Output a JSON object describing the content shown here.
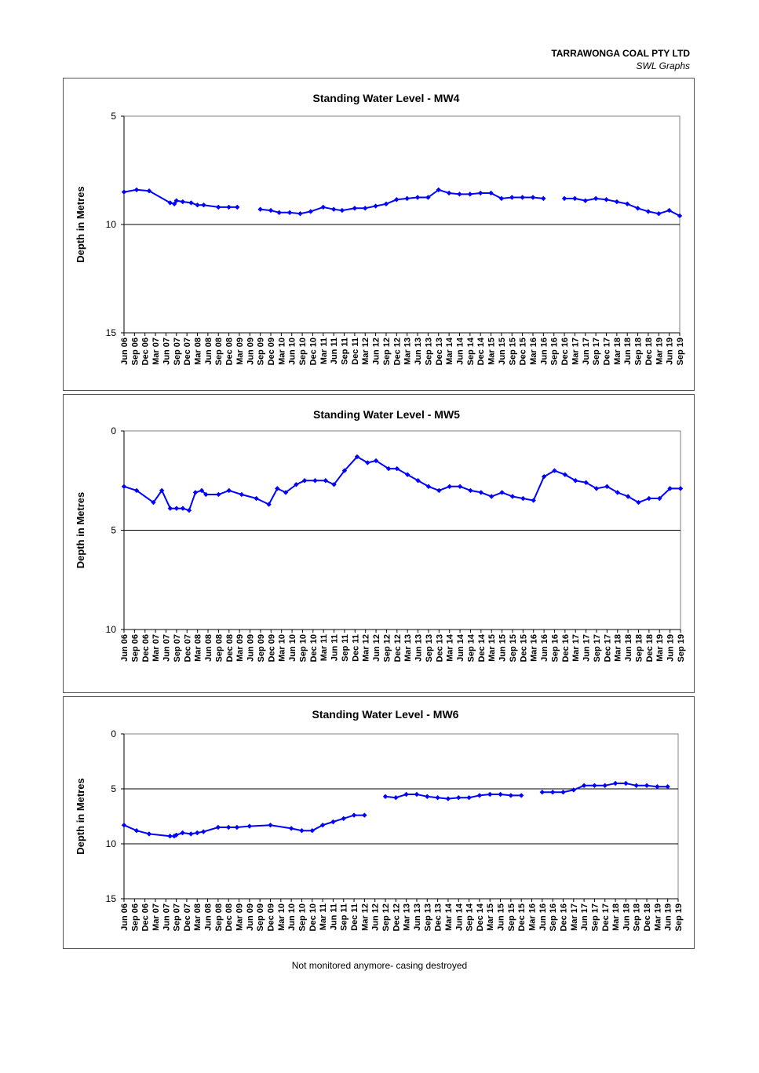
{
  "header": {
    "company": "TARRAWONGA COAL PTY LTD",
    "subtitle": "SWL Graphs"
  },
  "footnote": "Not monitored anymore- casing destroyed",
  "tick_labels": [
    "Jun 06",
    "Sep 06",
    "Dec 06",
    "Mar 07",
    "Jun 07",
    "Sep 07",
    "Dec 07",
    "Mar 08",
    "Jun 08",
    "Sep 08",
    "Dec 08",
    "Mar 09",
    "Jun 09",
    "Sep 09",
    "Dec 09",
    "Mar 10",
    "Jun 10",
    "Sep 10",
    "Dec 10",
    "Mar 11",
    "Jun 11",
    "Sep 11",
    "Dec 11",
    "Mar 12",
    "Jun 12",
    "Sep 12",
    "Dec 12",
    "Mar 13",
    "Jun 13",
    "Sep 13",
    "Dec 13",
    "Mar 14",
    "Jun 14",
    "Sep 14",
    "Dec 14",
    "Mar 15",
    "Jun 15",
    "Sep 15",
    "Dec 15",
    "Mar 16",
    "Jun 16",
    "Sep 16",
    "Dec 16",
    "Mar 17",
    "Jun 17",
    "Sep 17",
    "Dec 17",
    "Mar 18",
    "Jun 18",
    "Sep 18",
    "Dec 18",
    "Mar 19",
    "Jun 19",
    "Sep 19"
  ],
  "colors": {
    "series": "#0000ff",
    "grid": "#000000",
    "axis": "#000000"
  },
  "chart_data": [
    {
      "type": "line",
      "title": "Standing Water Level - MW4",
      "ylabel": "Depth in Metres",
      "ylim": [
        5,
        15
      ],
      "y_inverted": true,
      "yticks": [
        5,
        10,
        15
      ],
      "gridlines": [
        10
      ],
      "x_range": [
        0,
        53
      ],
      "series": [
        {
          "points": [
            [
              0,
              8.5
            ],
            [
              0.6,
              8.4
            ],
            [
              1.2,
              8.45
            ],
            [
              2.2,
              9.0
            ],
            [
              2.4,
              9.05
            ],
            [
              2.5,
              8.9
            ],
            [
              2.8,
              8.95
            ],
            [
              3.2,
              9.0
            ],
            [
              3.5,
              9.1
            ],
            [
              3.8,
              9.1
            ],
            [
              4.5,
              9.2
            ],
            [
              5,
              9.2
            ],
            [
              5.4,
              9.2
            ],
            null,
            [
              6.5,
              9.3
            ],
            [
              7,
              9.35
            ],
            [
              7.4,
              9.45
            ],
            [
              7.9,
              9.45
            ],
            [
              8.4,
              9.5
            ],
            [
              8.9,
              9.4
            ],
            [
              9.5,
              9.2
            ],
            [
              10,
              9.3
            ],
            [
              10.4,
              9.35
            ],
            [
              11,
              9.25
            ],
            [
              11.5,
              9.25
            ],
            [
              12,
              9.15
            ],
            [
              12.5,
              9.05
            ],
            [
              13,
              8.85
            ],
            [
              13.5,
              8.8
            ],
            [
              14,
              8.75
            ],
            [
              14.5,
              8.75
            ],
            [
              15,
              8.4
            ],
            [
              15.5,
              8.55
            ],
            [
              16,
              8.6
            ],
            [
              16.5,
              8.6
            ],
            [
              17,
              8.55
            ],
            [
              17.5,
              8.55
            ],
            [
              18,
              8.8
            ],
            [
              18.5,
              8.75
            ],
            [
              19,
              8.75
            ],
            [
              19.5,
              8.75
            ],
            [
              20,
              8.8
            ],
            null,
            [
              21,
              8.8
            ],
            [
              21.5,
              8.8
            ],
            [
              22,
              8.9
            ],
            [
              22.5,
              8.8
            ],
            [
              23,
              8.85
            ],
            [
              23.5,
              8.95
            ],
            [
              24,
              9.05
            ],
            [
              24.5,
              9.25
            ],
            [
              25,
              9.4
            ],
            [
              25.5,
              9.5
            ],
            [
              26,
              9.35
            ],
            [
              26.5,
              9.6
            ]
          ]
        }
      ]
    },
    {
      "type": "line",
      "title": "Standing Water Level - MW5",
      "ylabel": "Depth in Metres",
      "ylim": [
        0,
        10
      ],
      "y_inverted": true,
      "yticks": [
        0,
        5,
        10
      ],
      "gridlines": [
        5
      ],
      "x_range": [
        0,
        53
      ],
      "series": [
        {
          "points": [
            [
              0,
              2.8
            ],
            [
              0.6,
              3.0
            ],
            [
              1.4,
              3.6
            ],
            [
              1.8,
              3.0
            ],
            [
              2.2,
              3.9
            ],
            [
              2.5,
              3.9
            ],
            [
              2.8,
              3.9
            ],
            [
              3.1,
              4.0
            ],
            [
              3.4,
              3.1
            ],
            [
              3.7,
              3.0
            ],
            [
              3.9,
              3.2
            ],
            [
              4.5,
              3.2
            ],
            [
              5,
              3.0
            ],
            [
              5.6,
              3.2
            ],
            [
              6.3,
              3.4
            ],
            [
              6.9,
              3.7
            ],
            [
              7.3,
              2.9
            ],
            [
              7.7,
              3.1
            ],
            [
              8.2,
              2.7
            ],
            [
              8.6,
              2.5
            ],
            [
              9.1,
              2.5
            ],
            [
              9.6,
              2.5
            ],
            [
              10,
              2.7
            ],
            [
              10.5,
              2.0
            ],
            [
              11.1,
              1.3
            ],
            [
              11.6,
              1.6
            ],
            [
              12,
              1.5
            ],
            [
              12.6,
              1.9
            ],
            [
              13,
              1.9
            ],
            [
              13.5,
              2.2
            ],
            [
              14,
              2.5
            ],
            [
              14.5,
              2.8
            ],
            [
              15,
              3.0
            ],
            [
              15.5,
              2.8
            ],
            [
              16,
              2.8
            ],
            [
              16.5,
              3.0
            ],
            [
              17,
              3.1
            ],
            [
              17.5,
              3.3
            ],
            [
              18,
              3.1
            ],
            [
              18.5,
              3.3
            ],
            [
              19,
              3.4
            ],
            [
              19.5,
              3.5
            ],
            [
              20,
              2.3
            ],
            [
              20.5,
              2.0
            ],
            [
              21,
              2.2
            ],
            [
              21.5,
              2.5
            ],
            [
              22,
              2.6
            ],
            [
              22.5,
              2.9
            ],
            [
              23,
              2.8
            ],
            [
              23.5,
              3.1
            ],
            [
              24,
              3.3
            ],
            [
              24.5,
              3.6
            ],
            [
              25,
              3.4
            ],
            [
              25.5,
              3.4
            ],
            [
              26,
              2.9
            ],
            [
              26.5,
              2.9
            ]
          ]
        }
      ]
    },
    {
      "type": "line",
      "title": "Standing Water Level - MW6",
      "ylabel": "Depth in Metres",
      "ylim": [
        0,
        15
      ],
      "y_inverted": true,
      "yticks": [
        0,
        5,
        10,
        15
      ],
      "gridlines": [
        5,
        10
      ],
      "x_range": [
        0,
        53
      ],
      "series": [
        {
          "points": [
            [
              0,
              8.3
            ],
            [
              0.6,
              8.8
            ],
            [
              1.2,
              9.1
            ],
            [
              2.2,
              9.3
            ],
            [
              2.4,
              9.3
            ],
            [
              2.5,
              9.2
            ],
            [
              2.8,
              9.0
            ],
            [
              3.2,
              9.1
            ],
            [
              3.5,
              9.0
            ],
            [
              3.8,
              8.9
            ],
            [
              4.5,
              8.5
            ],
            [
              5,
              8.5
            ],
            [
              5.4,
              8.5
            ],
            [
              6,
              8.4
            ],
            [
              7,
              8.3
            ],
            [
              8,
              8.6
            ],
            [
              8.5,
              8.8
            ],
            [
              9,
              8.8
            ],
            [
              9.5,
              8.3
            ],
            [
              10,
              8.0
            ],
            [
              10.5,
              7.7
            ],
            [
              11,
              7.4
            ],
            [
              11.5,
              7.4
            ],
            null,
            [
              12.5,
              5.7
            ],
            [
              13,
              5.8
            ],
            [
              13.5,
              5.5
            ],
            [
              14,
              5.5
            ],
            [
              14.5,
              5.7
            ],
            [
              15,
              5.8
            ],
            [
              15.5,
              5.9
            ],
            [
              16,
              5.8
            ],
            [
              16.5,
              5.8
            ],
            [
              17,
              5.6
            ],
            [
              17.5,
              5.5
            ],
            [
              18,
              5.5
            ],
            [
              18.5,
              5.6
            ],
            [
              19,
              5.6
            ],
            null,
            [
              20,
              5.3
            ],
            [
              20.5,
              5.3
            ],
            [
              21,
              5.3
            ],
            [
              21.5,
              5.1
            ],
            [
              22,
              4.7
            ],
            [
              22.5,
              4.7
            ],
            [
              23,
              4.7
            ],
            [
              23.5,
              4.5
            ],
            [
              24,
              4.5
            ],
            [
              24.5,
              4.7
            ],
            [
              25,
              4.7
            ],
            [
              25.5,
              4.8
            ],
            [
              26,
              4.8
            ]
          ]
        }
      ]
    }
  ]
}
